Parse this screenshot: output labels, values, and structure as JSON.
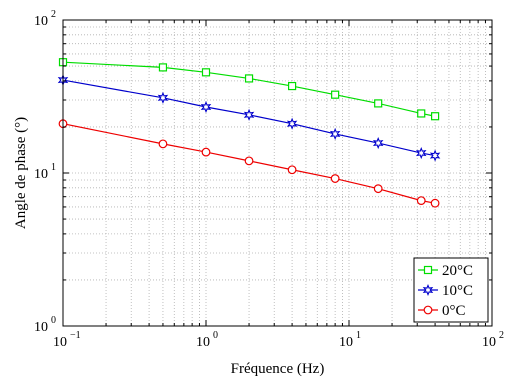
{
  "chart_data": {
    "type": "line",
    "x_scale": "log",
    "y_scale": "log",
    "xlabel": "Fréquence (Hz)",
    "ylabel": "Angle de phase (°)",
    "xlim": [
      0.1,
      100
    ],
    "ylim": [
      1,
      100
    ],
    "x_ticks": [
      {
        "value": 0.1,
        "base": "10",
        "exp": "−1"
      },
      {
        "value": 1,
        "base": "10",
        "exp": "0"
      },
      {
        "value": 10,
        "base": "10",
        "exp": "1"
      },
      {
        "value": 100,
        "base": "10",
        "exp": "2"
      }
    ],
    "y_ticks": [
      {
        "value": 1,
        "base": "10",
        "exp": "0"
      },
      {
        "value": 10,
        "base": "10",
        "exp": "1"
      },
      {
        "value": 100,
        "base": "10",
        "exp": "2"
      }
    ],
    "grid": true,
    "legend_position": "bottom-right",
    "x": [
      0.1,
      0.5,
      1,
      2,
      4,
      8,
      16,
      32,
      40
    ],
    "series": [
      {
        "name": "20°C",
        "color": "#00dd00",
        "marker": "square",
        "values": [
          53,
          49,
          45.5,
          41.5,
          37,
          32.5,
          28.5,
          24.5,
          23.5
        ]
      },
      {
        "name": "10°C",
        "color": "#0000cc",
        "marker": "star",
        "values": [
          40.5,
          31,
          27,
          24,
          21,
          18,
          15.7,
          13.5,
          13
        ]
      },
      {
        "name": "0°C",
        "color": "#ee0000",
        "marker": "circle",
        "values": [
          21,
          15.5,
          13.7,
          12,
          10.5,
          9.2,
          7.9,
          6.6,
          6.35
        ]
      }
    ]
  }
}
